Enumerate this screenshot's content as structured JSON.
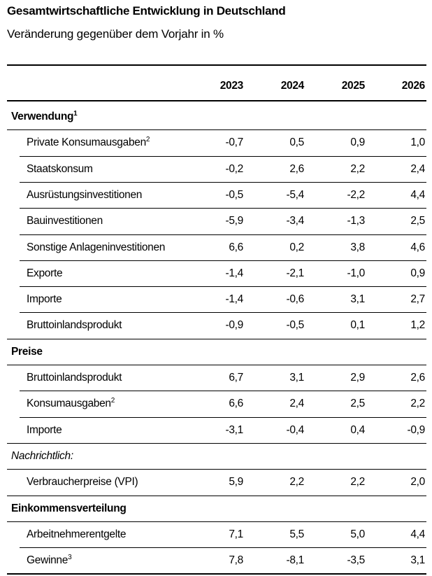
{
  "header": {
    "title": "Gesamtwirtschaftliche Entwicklung in Deutschland",
    "subtitle": "Veränderung gegenüber dem Vorjahr in %"
  },
  "table": {
    "columns": [
      "2023",
      "2024",
      "2025",
      "2026"
    ],
    "sections": [
      {
        "title": "Verwendung",
        "note": "1",
        "rows": [
          {
            "label": "Private Konsumausgaben",
            "note": "2",
            "values": [
              "-0,7",
              "0,5",
              "0,9",
              "1,0"
            ]
          },
          {
            "label": "Staatskonsum",
            "values": [
              "-0,2",
              "2,6",
              "2,2",
              "2,4"
            ]
          },
          {
            "label": "Ausrüstungsinvestitionen",
            "values": [
              "-0,5",
              "-5,4",
              "-2,2",
              "4,4"
            ]
          },
          {
            "label": "Bauinvestitionen",
            "values": [
              "-5,9",
              "-3,4",
              "-1,3",
              "2,5"
            ]
          },
          {
            "label": "Sonstige Anlageninvestitionen",
            "values": [
              "6,6",
              "0,2",
              "3,8",
              "4,6"
            ]
          },
          {
            "label": "Exporte",
            "values": [
              "-1,4",
              "-2,1",
              "-1,0",
              "0,9"
            ]
          },
          {
            "label": "Importe",
            "values": [
              "-1,4",
              "-0,6",
              "3,1",
              "2,7"
            ]
          },
          {
            "label": "Bruttoinlandsprodukt",
            "values": [
              "-0,9",
              "-0,5",
              "0,1",
              "1,2"
            ]
          }
        ]
      },
      {
        "title": "Preise",
        "rows": [
          {
            "label": "Bruttoinlandsprodukt",
            "values": [
              "6,7",
              "3,1",
              "2,9",
              "2,6"
            ]
          },
          {
            "label": "Konsumausgaben",
            "note": "2",
            "values": [
              "6,6",
              "2,4",
              "2,5",
              "2,2"
            ]
          },
          {
            "label": "Importe",
            "values": [
              "-3,1",
              "-0,4",
              "0,4",
              "-0,9"
            ]
          }
        ]
      },
      {
        "title": "Nachrichtlich:",
        "style": "italic",
        "rows": [
          {
            "label": "Verbraucherpreise (VPI)",
            "values": [
              "5,9",
              "2,2",
              "2,2",
              "2,0"
            ]
          }
        ]
      },
      {
        "title": "Einkommensverteilung",
        "rows": [
          {
            "label": "Arbeitnehmerentgelte",
            "values": [
              "7,1",
              "5,5",
              "5,0",
              "4,4"
            ]
          },
          {
            "label": "Gewinne",
            "note": "3",
            "values": [
              "7,8",
              "-8,1",
              "-3,5",
              "3,1"
            ]
          }
        ]
      }
    ]
  }
}
